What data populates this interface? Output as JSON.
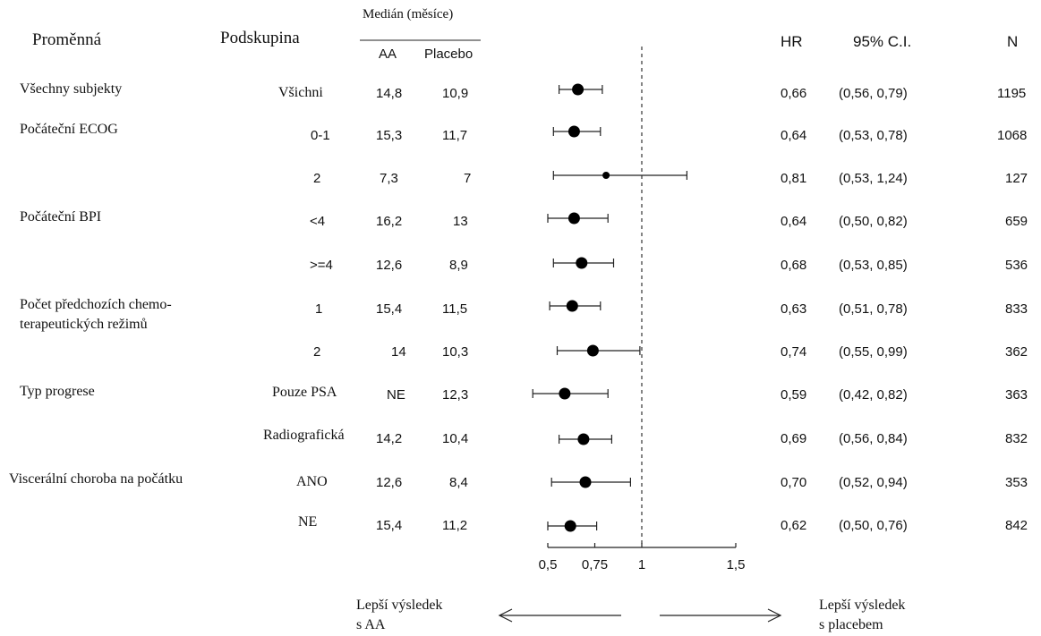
{
  "header": {
    "variable": "Proměnná",
    "subgroup": "Podskupina",
    "median": "Medián (měsíce)",
    "aa": "AA",
    "placebo": "Placebo",
    "hr": "HR",
    "ci": "95% C.I.",
    "n": "N"
  },
  "variables": [
    "Všechny subjekty",
    "Počáteční ECOG",
    "Počáteční BPI",
    "Počet předchozích chemo-",
    "terapeutických režimů",
    "Typ progrese",
    "Viscerální choroba na počátku"
  ],
  "rows": [
    {
      "subgroup": "Všichni",
      "aa": "14,8",
      "placebo": "10,9",
      "hr_text": "0,66",
      "ci_text": "(0,56,  0,79)",
      "n": "1195"
    },
    {
      "subgroup": "0-1",
      "aa": "15,3",
      "placebo": "11,7",
      "hr_text": "0,64",
      "ci_text": "(0,53,  0,78)",
      "n": "1068"
    },
    {
      "subgroup": "2",
      "aa": "7,3",
      "placebo": "7",
      "hr_text": "0,81",
      "ci_text": "(0,53,  1,24)",
      "n": "127"
    },
    {
      "subgroup": "<4",
      "aa": "16,2",
      "placebo": "13",
      "hr_text": "0,64",
      "ci_text": "(0,50,  0,82)",
      "n": "659"
    },
    {
      "subgroup": ">=4",
      "aa": "12,6",
      "placebo": "8,9",
      "hr_text": "0,68",
      "ci_text": "(0,53,  0,85)",
      "n": "536"
    },
    {
      "subgroup": "1",
      "aa": "15,4",
      "placebo": "11,5",
      "hr_text": "0,63",
      "ci_text": "(0,51,  0,78)",
      "n": "833"
    },
    {
      "subgroup": "2",
      "aa": "14",
      "placebo": "10,3",
      "hr_text": "0,74",
      "ci_text": "(0,55,  0,99)",
      "n": "362"
    },
    {
      "subgroup": "Pouze PSA",
      "aa": "NE",
      "placebo": "12,3",
      "hr_text": "0,59",
      "ci_text": "(0,42,  0,82)",
      "n": "363"
    },
    {
      "subgroup": "Radiografická",
      "aa": "14,2",
      "placebo": "10,4",
      "hr_text": "0,69",
      "ci_text": "(0,56,  0,84)",
      "n": "832"
    },
    {
      "subgroup": "ANO",
      "aa": "12,6",
      "placebo": "8,4",
      "hr_text": "0,70",
      "ci_text": "(0,52,  0,94)",
      "n": "353"
    },
    {
      "subgroup": "NE",
      "aa": "15,4",
      "placebo": "11,2",
      "hr_text": "0,62",
      "ci_text": "(0,50,  0,76)",
      "n": "842"
    }
  ],
  "footer": {
    "left_line1": "Lepší výsledek",
    "left_line2": "s AA",
    "right_line1": "Lepší výsledek",
    "right_line2": "s placebem"
  },
  "chart_data": {
    "type": "forest",
    "x_ticks": [
      "0,5",
      "0,75",
      "1",
      "1,5"
    ],
    "x_tick_values": [
      0.5,
      0.75,
      1,
      1.5
    ],
    "xlim": [
      0.5,
      1.5
    ],
    "reference_line": 1,
    "points": [
      {
        "hr": 0.66,
        "lo": 0.56,
        "hi": 0.79
      },
      {
        "hr": 0.64,
        "lo": 0.53,
        "hi": 0.78
      },
      {
        "hr": 0.81,
        "lo": 0.53,
        "hi": 1.24
      },
      {
        "hr": 0.64,
        "lo": 0.5,
        "hi": 0.82
      },
      {
        "hr": 0.68,
        "lo": 0.53,
        "hi": 0.85
      },
      {
        "hr": 0.63,
        "lo": 0.51,
        "hi": 0.78
      },
      {
        "hr": 0.74,
        "lo": 0.55,
        "hi": 0.99
      },
      {
        "hr": 0.59,
        "lo": 0.42,
        "hi": 0.82
      },
      {
        "hr": 0.69,
        "lo": 0.56,
        "hi": 0.84
      },
      {
        "hr": 0.7,
        "lo": 0.52,
        "hi": 0.94
      },
      {
        "hr": 0.62,
        "lo": 0.5,
        "hi": 0.76
      }
    ]
  }
}
